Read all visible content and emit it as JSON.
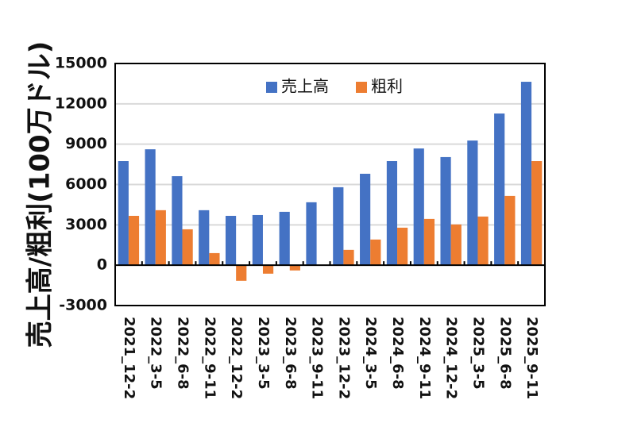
{
  "chart_data": {
    "type": "bar",
    "title": "",
    "xlabel": "",
    "ylabel": "売上高/粗利(100万ドル)",
    "ylim": [
      -3000,
      15000
    ],
    "yticks": [
      15000,
      12000,
      9000,
      6000,
      3000,
      0,
      -3000
    ],
    "grid": true,
    "legend_position": "top-center",
    "categories": [
      "2021_12-2",
      "2022_3-5",
      "2022_6-8",
      "2022_9-11",
      "2022_12-2",
      "2023_3-5",
      "2023_6-8",
      "2023_9-11",
      "2023_12-2",
      "2024_3-5",
      "2024_6-8",
      "2024_9-11",
      "2024_12-2",
      "2025_3-5",
      "2025_6-8",
      "2025_9-11"
    ],
    "series": [
      {
        "name": "売上高",
        "color": "#4472c4",
        "values": [
          7740,
          8620,
          6620,
          4090,
          3670,
          3730,
          3970,
          4680,
          5800,
          6800,
          7740,
          8680,
          8040,
          9270,
          11280,
          13640
        ]
      },
      {
        "name": "粗利",
        "color": "#ed7d31",
        "values": [
          3670,
          4090,
          2670,
          900,
          -1160,
          -630,
          -390,
          0,
          1140,
          1910,
          2790,
          3440,
          3030,
          3620,
          5150,
          7740
        ]
      }
    ]
  }
}
